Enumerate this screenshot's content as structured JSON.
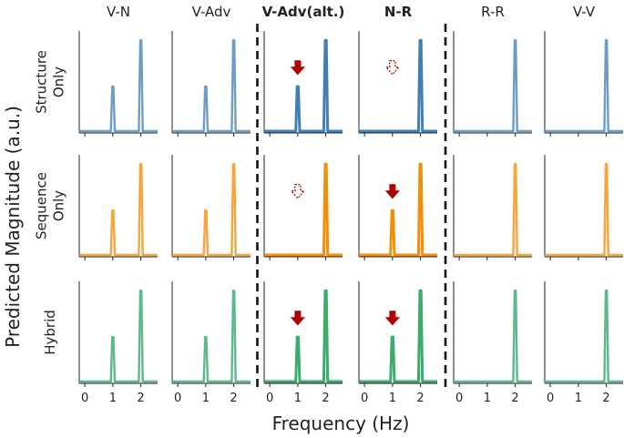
{
  "chart_data": {
    "type": "line",
    "xlabel": "Frequency (Hz)",
    "ylabel": "Predicted Magnitude (a.u.)",
    "xlim": [
      -0.2,
      2.6
    ],
    "ylim": [
      0,
      1.1
    ],
    "xticks": [
      "0",
      "1",
      "2"
    ],
    "columns": [
      {
        "title": "V-N",
        "bold": false
      },
      {
        "title": "V-Adv",
        "bold": false
      },
      {
        "title": "V-Adv(alt.)",
        "bold": true
      },
      {
        "title": "N-R",
        "bold": true
      },
      {
        "title": "R-R",
        "bold": false
      },
      {
        "title": "V-V",
        "bold": false
      }
    ],
    "rows": [
      {
        "label_lines": [
          "Structure",
          "Only"
        ],
        "color_light": "#6c9dc6",
        "color_dark": "#3f7fb4"
      },
      {
        "label_lines": [
          "Sequence",
          "Only"
        ],
        "color_light": "#f7a43c",
        "color_dark": "#f28e08"
      },
      {
        "label_lines": [
          "Hybrid"
        ],
        "color_light": "#5cb98b",
        "color_dark": "#3cab6c"
      }
    ],
    "panels": [
      {
        "row": 0,
        "col": 0,
        "peaks": [
          {
            "x": 1,
            "y": 0.5
          },
          {
            "x": 2,
            "y": 1.0
          }
        ],
        "arrow": null
      },
      {
        "row": 0,
        "col": 1,
        "peaks": [
          {
            "x": 1,
            "y": 0.5
          },
          {
            "x": 2,
            "y": 1.0
          }
        ],
        "arrow": null
      },
      {
        "row": 0,
        "col": 2,
        "peaks": [
          {
            "x": 1,
            "y": 0.5
          },
          {
            "x": 2,
            "y": 1.0
          }
        ],
        "arrow": {
          "x": 1,
          "style": "filled"
        }
      },
      {
        "row": 0,
        "col": 3,
        "peaks": [
          {
            "x": 2,
            "y": 1.0
          }
        ],
        "arrow": {
          "x": 1,
          "style": "outline"
        }
      },
      {
        "row": 0,
        "col": 4,
        "peaks": [
          {
            "x": 2,
            "y": 1.0
          }
        ],
        "arrow": null
      },
      {
        "row": 0,
        "col": 5,
        "peaks": [
          {
            "x": 2,
            "y": 1.0
          }
        ],
        "arrow": null
      },
      {
        "row": 1,
        "col": 0,
        "peaks": [
          {
            "x": 1,
            "y": 0.5
          },
          {
            "x": 2,
            "y": 1.0
          }
        ],
        "arrow": null
      },
      {
        "row": 1,
        "col": 1,
        "peaks": [
          {
            "x": 1,
            "y": 0.5
          },
          {
            "x": 2,
            "y": 1.0
          }
        ],
        "arrow": null
      },
      {
        "row": 1,
        "col": 2,
        "peaks": [
          {
            "x": 2,
            "y": 1.0
          }
        ],
        "arrow": {
          "x": 1,
          "style": "outline"
        }
      },
      {
        "row": 1,
        "col": 3,
        "peaks": [
          {
            "x": 1,
            "y": 0.5
          },
          {
            "x": 2,
            "y": 1.0
          }
        ],
        "arrow": {
          "x": 1,
          "style": "filled"
        }
      },
      {
        "row": 1,
        "col": 4,
        "peaks": [
          {
            "x": 2,
            "y": 1.0
          }
        ],
        "arrow": null
      },
      {
        "row": 1,
        "col": 5,
        "peaks": [
          {
            "x": 2,
            "y": 1.0
          }
        ],
        "arrow": null
      },
      {
        "row": 2,
        "col": 0,
        "peaks": [
          {
            "x": 1,
            "y": 0.5
          },
          {
            "x": 2,
            "y": 1.0
          }
        ],
        "arrow": null
      },
      {
        "row": 2,
        "col": 1,
        "peaks": [
          {
            "x": 1,
            "y": 0.5
          },
          {
            "x": 2,
            "y": 1.0
          }
        ],
        "arrow": null
      },
      {
        "row": 2,
        "col": 2,
        "peaks": [
          {
            "x": 1,
            "y": 0.5
          },
          {
            "x": 2,
            "y": 1.0
          }
        ],
        "arrow": {
          "x": 1,
          "style": "filled"
        }
      },
      {
        "row": 2,
        "col": 3,
        "peaks": [
          {
            "x": 1,
            "y": 0.5
          },
          {
            "x": 2,
            "y": 1.0
          }
        ],
        "arrow": {
          "x": 1,
          "style": "filled"
        }
      },
      {
        "row": 2,
        "col": 4,
        "peaks": [
          {
            "x": 2,
            "y": 1.0
          }
        ],
        "arrow": null
      },
      {
        "row": 2,
        "col": 5,
        "peaks": [
          {
            "x": 2,
            "y": 1.0
          }
        ],
        "arrow": null
      }
    ],
    "separators_after_columns": [
      1,
      3
    ],
    "arrow_color": "#b00000"
  }
}
